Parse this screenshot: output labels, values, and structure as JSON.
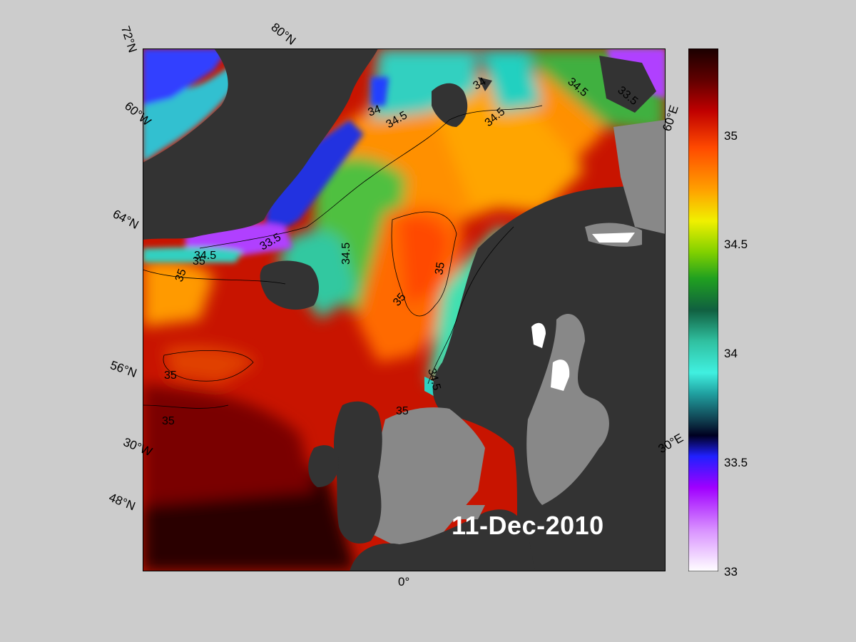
{
  "date_label": "11-Dec-2010",
  "lat_labels": [
    "72°N",
    "64°N",
    "56°N",
    "48°N"
  ],
  "lon_labels": [
    "60°W",
    "30°W",
    "0°",
    "30°E",
    "60°E"
  ],
  "lat80_label": "80°N",
  "colorbar": {
    "ticks": [
      "35",
      "34.5",
      "34",
      "33.5",
      "33"
    ],
    "min": 33,
    "max": 35.4
  },
  "contour_labels": [
    "34",
    "34.5",
    "34",
    "34.5",
    "34.5",
    "33.5",
    "34.5",
    "33.5",
    "34.5",
    "35",
    "35",
    "35",
    "35",
    "35",
    "35",
    "34.5",
    "35"
  ],
  "colors": {
    "land_dark": "#333333",
    "land_grey": "#888888",
    "background": "#cccccc"
  }
}
